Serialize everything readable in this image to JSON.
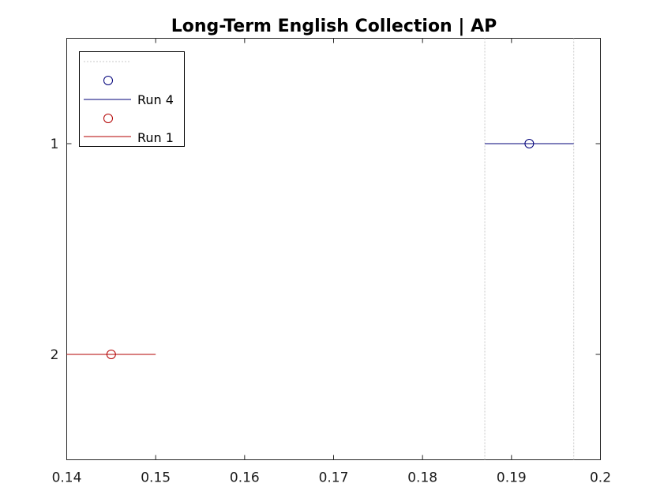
{
  "chart_data": {
    "type": "scatter",
    "title": "Long-Term English Collection | AP",
    "xlim": [
      0.14,
      0.2
    ],
    "ylim": [
      0.5,
      2.5
    ],
    "y_reversed": true,
    "xticks": [
      0.14,
      0.15,
      0.16,
      0.17,
      0.18,
      0.19,
      0.2
    ],
    "xtick_labels": [
      "0.14",
      "0.15",
      "0.16",
      "0.17",
      "0.18",
      "0.19",
      "0.2"
    ],
    "yticks": [
      1,
      2
    ],
    "ytick_labels": [
      "1",
      "2"
    ],
    "reference_lines_x": [
      0.187,
      0.197
    ],
    "grid": false,
    "legend_position": "top-left",
    "series": [
      {
        "name": "Run 4",
        "color": "#00007a",
        "y": 1,
        "x": 0.192,
        "interval": [
          0.187,
          0.197
        ]
      },
      {
        "name": "Run 1",
        "color": "#b30000",
        "y": 2,
        "x": 0.145,
        "interval": [
          0.14,
          0.15
        ]
      }
    ]
  }
}
